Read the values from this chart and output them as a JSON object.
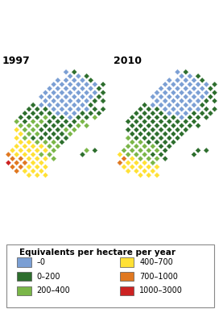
{
  "title_1997": "1997",
  "title_2010": "2010",
  "legend_title": "Equivalents per hectare per year",
  "legend_entries": [
    {
      "label": "–0",
      "color": "#7b9fd4"
    },
    {
      "label": "0–200",
      "color": "#2d6e2d"
    },
    {
      "label": "200–400",
      "color": "#7ab648"
    },
    {
      "label": "400–700",
      "color": "#ffe135"
    },
    {
      "label": "700–1000",
      "color": "#e07820"
    },
    {
      "label": "1000–3000",
      "color": "#cc2222"
    }
  ],
  "colors": {
    "0": "#7b9fd4",
    "1": "#2d6e2d",
    "2": "#7ab648",
    "3": "#ffe135",
    "4": "#e07820",
    "5": "#cc2222",
    "W": "#ffffff"
  },
  "bg_color": "#ffffff",
  "border_color": "#222222",
  "title_fontsize": 9,
  "legend_fontsize": 7,
  "legend_title_fontsize": 7.5,
  "grid_1997": [
    [
      " ",
      " ",
      " ",
      " ",
      " ",
      " ",
      " ",
      " ",
      " ",
      " ",
      " ",
      " ",
      " "
    ],
    [
      " ",
      " ",
      " ",
      " ",
      " ",
      " ",
      " ",
      " ",
      " ",
      " ",
      " ",
      " ",
      " "
    ],
    [
      " ",
      " ",
      " ",
      " ",
      " ",
      " ",
      " ",
      "0",
      "1",
      " ",
      " ",
      " ",
      " "
    ],
    [
      " ",
      " ",
      " ",
      " ",
      " ",
      " ",
      "W",
      "0",
      "0",
      "1",
      " ",
      " ",
      " "
    ],
    [
      " ",
      " ",
      " ",
      " ",
      " ",
      " ",
      "0",
      "0",
      "0",
      "0",
      "1",
      " ",
      " "
    ],
    [
      " ",
      " ",
      " ",
      " ",
      " ",
      "0",
      "0",
      "0",
      "0",
      "0",
      "0",
      "1",
      " "
    ],
    [
      " ",
      " ",
      " ",
      " ",
      " ",
      "0",
      "0",
      "0",
      "0",
      "0",
      "0",
      "1",
      " "
    ],
    [
      " ",
      " ",
      " ",
      " ",
      "0",
      "0",
      "0",
      "0",
      "0",
      "0",
      "0",
      "1",
      " "
    ],
    [
      " ",
      " ",
      " ",
      " ",
      "0",
      "0",
      "0",
      "0",
      "0",
      "0",
      "0",
      "1",
      " "
    ],
    [
      " ",
      " ",
      " ",
      " ",
      "0",
      "0",
      "0",
      "0",
      "0",
      "0",
      "1",
      "1",
      " "
    ],
    [
      " ",
      " ",
      " ",
      "1",
      "0",
      "0",
      "0",
      "0",
      "0",
      "0",
      "1",
      " ",
      " "
    ],
    [
      " ",
      " ",
      "1",
      "1",
      "1",
      "0",
      "0",
      "0",
      "0",
      "0",
      "1",
      "1",
      " "
    ],
    [
      " ",
      " ",
      "1",
      "1",
      "1",
      "1",
      "0",
      "0",
      "0",
      "1",
      "1",
      "1",
      " "
    ],
    [
      " ",
      "1",
      "1",
      "1",
      "2",
      "1",
      "1",
      "0",
      "1",
      "1",
      "2",
      " ",
      " "
    ],
    [
      " ",
      "2",
      "1",
      "2",
      "2",
      "1",
      "1",
      "1",
      "1",
      "2",
      " ",
      " ",
      " "
    ],
    [
      " ",
      "2",
      "2",
      "2",
      "1",
      "1",
      "1",
      "1",
      "2",
      "2",
      " ",
      " ",
      " "
    ],
    [
      " ",
      "3",
      "2",
      "2",
      "1",
      "1",
      "1",
      "2",
      "2",
      " ",
      " ",
      " ",
      " "
    ],
    [
      " ",
      "3",
      "2",
      "2",
      "1",
      "1",
      "1",
      "2",
      " ",
      " ",
      " ",
      " ",
      " "
    ],
    [
      " ",
      "3",
      "2",
      "1",
      "1",
      "1",
      "1",
      "1",
      " ",
      " ",
      " ",
      " ",
      " "
    ],
    [
      " ",
      "3",
      "3",
      "2",
      "2",
      "2",
      "1",
      " ",
      " ",
      " ",
      " ",
      " ",
      " "
    ],
    [
      " ",
      "3",
      "3",
      "3",
      "3",
      "2",
      "2",
      " ",
      " ",
      " ",
      " ",
      " ",
      " "
    ],
    [
      "3",
      "3",
      "3",
      "3",
      "3",
      "2",
      " ",
      " ",
      " ",
      "2",
      "1",
      " ",
      " "
    ],
    [
      "4",
      "3",
      "3",
      "3",
      "2",
      "2",
      " ",
      " ",
      " ",
      "1",
      " ",
      " ",
      " "
    ],
    [
      "4",
      "4",
      "3",
      "3",
      "3",
      "2",
      " ",
      " ",
      " ",
      " ",
      " ",
      " ",
      " "
    ],
    [
      "5",
      "4",
      "4",
      "3",
      "3",
      " ",
      " ",
      " ",
      " ",
      " ",
      " ",
      " ",
      " "
    ],
    [
      "4",
      "4",
      "3",
      "3",
      "3",
      " ",
      " ",
      " ",
      " ",
      " ",
      " ",
      " ",
      " "
    ],
    [
      " ",
      "4",
      "3",
      "3",
      "3",
      " ",
      " ",
      " ",
      " ",
      " ",
      " ",
      " ",
      " "
    ],
    [
      " ",
      " ",
      "3",
      "3",
      "3",
      " ",
      " ",
      " ",
      " ",
      " ",
      " ",
      " ",
      " "
    ]
  ],
  "grid_2010": [
    [
      " ",
      " ",
      " ",
      " ",
      " ",
      " ",
      " ",
      " ",
      " ",
      " ",
      " ",
      " ",
      " "
    ],
    [
      " ",
      " ",
      " ",
      " ",
      " ",
      " ",
      " ",
      " ",
      " ",
      " ",
      " ",
      " ",
      " "
    ],
    [
      " ",
      " ",
      " ",
      " ",
      " ",
      " ",
      " ",
      "0",
      "1",
      " ",
      " ",
      " ",
      " "
    ],
    [
      " ",
      " ",
      " ",
      " ",
      " ",
      " ",
      "W",
      "0",
      "0",
      "1",
      " ",
      " ",
      " "
    ],
    [
      " ",
      " ",
      " ",
      " ",
      " ",
      " ",
      "0",
      "0",
      "0",
      "0",
      "1",
      " ",
      " "
    ],
    [
      " ",
      " ",
      " ",
      " ",
      " ",
      "0",
      "0",
      "0",
      "0",
      "0",
      "0",
      "1",
      " "
    ],
    [
      " ",
      " ",
      " ",
      " ",
      " ",
      "0",
      "0",
      "0",
      "0",
      "0",
      "0",
      "1",
      " "
    ],
    [
      " ",
      " ",
      " ",
      " ",
      "0",
      "0",
      "0",
      "0",
      "0",
      "0",
      "0",
      "1",
      " "
    ],
    [
      " ",
      " ",
      " ",
      " ",
      "0",
      "0",
      "0",
      "0",
      "0",
      "0",
      "0",
      "1",
      " "
    ],
    [
      " ",
      " ",
      " ",
      " ",
      "0",
      "0",
      "0",
      "0",
      "0",
      "0",
      "1",
      "1",
      " "
    ],
    [
      " ",
      " ",
      " ",
      "1",
      "0",
      "0",
      "0",
      "0",
      "0",
      "0",
      "1",
      " ",
      " "
    ],
    [
      " ",
      " ",
      "1",
      "1",
      "1",
      "0",
      "0",
      "0",
      "0",
      "0",
      "1",
      "1",
      " "
    ],
    [
      " ",
      " ",
      "1",
      "1",
      "1",
      "1",
      "0",
      "0",
      "0",
      "1",
      "1",
      "1",
      " "
    ],
    [
      " ",
      "1",
      "1",
      "1",
      "1",
      "1",
      "1",
      "0",
      "1",
      "1",
      "1",
      " ",
      " "
    ],
    [
      " ",
      "1",
      "1",
      "1",
      "1",
      "1",
      "1",
      "1",
      "1",
      "1",
      " ",
      " ",
      " "
    ],
    [
      " ",
      "1",
      "1",
      "1",
      "1",
      "1",
      "1",
      "1",
      "1",
      "1",
      " ",
      " ",
      " "
    ],
    [
      " ",
      "1",
      "1",
      "1",
      "1",
      "1",
      "1",
      "1",
      "1",
      " ",
      " ",
      " ",
      " "
    ],
    [
      " ",
      "1",
      "1",
      "1",
      "1",
      "1",
      "1",
      "1",
      " ",
      " ",
      " ",
      " ",
      " "
    ],
    [
      " ",
      "2",
      "1",
      "1",
      "1",
      "1",
      "1",
      "1",
      " ",
      " ",
      " ",
      " ",
      " "
    ],
    [
      " ",
      "2",
      "2",
      "1",
      "1",
      "1",
      "1",
      " ",
      " ",
      " ",
      " ",
      " ",
      " "
    ],
    [
      " ",
      "2",
      "2",
      "2",
      "2",
      "1",
      "1",
      " ",
      " ",
      " ",
      " ",
      " ",
      " "
    ],
    [
      "2",
      "2",
      "2",
      "2",
      "2",
      "1",
      " ",
      " ",
      " ",
      "1",
      "1",
      " ",
      " "
    ],
    [
      "3",
      "2",
      "2",
      "2",
      "1",
      "1",
      " ",
      " ",
      " ",
      "1",
      " ",
      " ",
      " "
    ],
    [
      "4",
      "3",
      "2",
      "2",
      "2",
      "1",
      " ",
      " ",
      " ",
      " ",
      " ",
      " ",
      " "
    ],
    [
      "4",
      "3",
      "3",
      "3",
      "2",
      " ",
      " ",
      " ",
      " ",
      " ",
      " ",
      " ",
      " "
    ],
    [
      "3",
      "3",
      "3",
      "3",
      "3",
      " ",
      " ",
      " ",
      " ",
      " ",
      " ",
      " ",
      " "
    ],
    [
      " ",
      "3",
      "3",
      "3",
      "3",
      " ",
      " ",
      " ",
      " ",
      " ",
      " ",
      " ",
      " "
    ],
    [
      " ",
      " ",
      "3",
      "3",
      "3",
      " ",
      " ",
      " ",
      " ",
      " ",
      " ",
      " ",
      " "
    ]
  ]
}
